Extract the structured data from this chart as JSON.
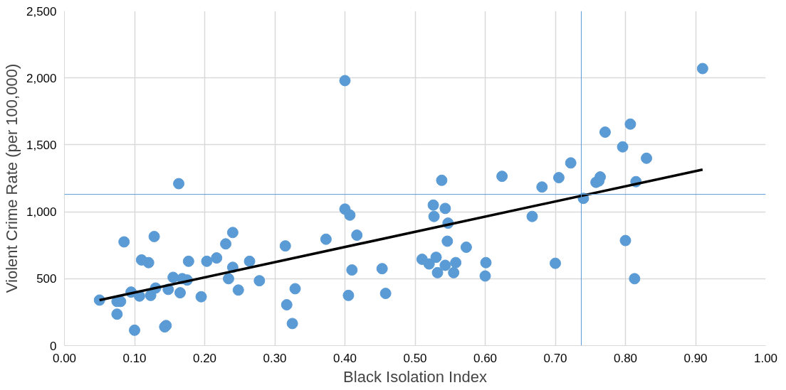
{
  "chart_data": {
    "type": "scatter",
    "xlabel": "Black Isolation Index",
    "ylabel": "Violent Crime Rate (per 100,000)",
    "xlim": [
      0,
      1
    ],
    "ylim": [
      0,
      2500
    ],
    "xticks": [
      {
        "value": 0,
        "label": "0.00"
      },
      {
        "value": 0.1,
        "label": "0.10"
      },
      {
        "value": 0.2,
        "label": "0.20"
      },
      {
        "value": 0.3,
        "label": "0.30"
      },
      {
        "value": 0.4,
        "label": "0.40"
      },
      {
        "value": 0.5,
        "label": "0.50"
      },
      {
        "value": 0.6,
        "label": "0.60"
      },
      {
        "value": 0.7,
        "label": "0.70"
      },
      {
        "value": 0.8,
        "label": "0.80"
      },
      {
        "value": 0.9,
        "label": "0.90"
      },
      {
        "value": 1,
        "label": "1.00"
      }
    ],
    "yticks": [
      0,
      {
        "value": 500,
        "label": "500"
      },
      {
        "value": 1000,
        "label": "1,000"
      },
      {
        "value": 1500,
        "label": "1,500"
      },
      {
        "value": 2000,
        "label": "2,000"
      },
      {
        "value": 2500,
        "label": "2,500"
      }
    ],
    "grid": true,
    "series": [
      {
        "marker": "circle",
        "color": "#5b9bd5",
        "x": [
          0.05,
          0.075,
          0.075,
          0.08,
          0.085,
          0.095,
          0.1,
          0.107,
          0.11,
          0.12,
          0.123,
          0.128,
          0.13,
          0.143,
          0.145,
          0.148,
          0.155,
          0.163,
          0.165,
          0.168,
          0.175,
          0.177,
          0.195,
          0.203,
          0.217,
          0.23,
          0.234,
          0.24,
          0.24,
          0.248,
          0.264,
          0.278,
          0.315,
          0.317,
          0.325,
          0.329,
          0.373,
          0.4,
          0.4,
          0.405,
          0.407,
          0.41,
          0.417,
          0.453,
          0.458,
          0.51,
          0.52,
          0.526,
          0.527,
          0.53,
          0.532,
          0.538,
          0.543,
          0.543,
          0.546,
          0.547,
          0.555,
          0.558,
          0.573,
          0.6,
          0.601,
          0.624,
          0.667,
          0.681,
          0.7,
          0.705,
          0.722,
          0.74,
          0.758,
          0.762,
          0.764,
          0.771,
          0.796,
          0.8,
          0.807,
          0.813,
          0.815,
          0.83,
          0.91
        ],
        "values": [
          340,
          235,
          330,
          330,
          775,
          400,
          115,
          370,
          640,
          620,
          375,
          815,
          430,
          140,
          150,
          420,
          510,
          1210,
          395,
          500,
          490,
          630,
          365,
          630,
          655,
          760,
          500,
          585,
          845,
          415,
          630,
          485,
          745,
          305,
          165,
          425,
          795,
          1980,
          1020,
          375,
          975,
          565,
          825,
          575,
          390,
          645,
          610,
          1050,
          965,
          660,
          545,
          1235,
          600,
          1025,
          780,
          915,
          545,
          620,
          735,
          520,
          620,
          1265,
          965,
          1185,
          615,
          1255,
          1365,
          1100,
          1220,
          1230,
          1260,
          1595,
          1485,
          785,
          1655,
          500,
          1225,
          1400,
          2070
        ]
      },
      {
        "type": "line",
        "color": "#000000",
        "x": [
          0.05,
          0.91
        ],
        "values": [
          340,
          1315
        ]
      }
    ],
    "ref_lines": [
      {
        "axis": "x",
        "value": 0.737,
        "color": "#5b9bd5"
      },
      {
        "axis": "y",
        "value": 1130,
        "color": "#5b9bd5"
      }
    ]
  }
}
